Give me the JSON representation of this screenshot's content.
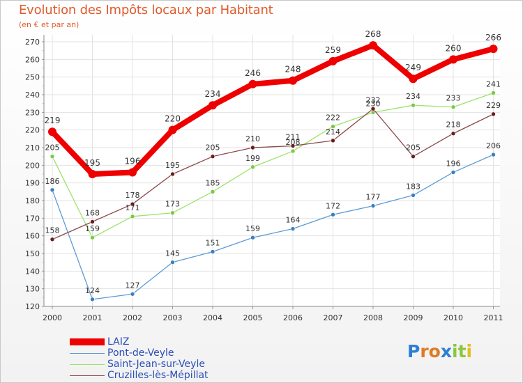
{
  "title": "Evolution des Impôts locaux par Habitant",
  "subtitle": "(en € et par an)",
  "brand": {
    "name": "Proxiti",
    "letters": [
      "P",
      "r",
      "o",
      "x",
      "i",
      "t",
      "i"
    ],
    "colors": [
      "#2a7fd4",
      "#e07a22",
      "#e07a22",
      "#2a7fd4",
      "#8cc63f",
      "#8cc63f",
      "#e0c020"
    ]
  },
  "chart_data": {
    "type": "line",
    "title": "Evolution des Impôts locaux par Habitant",
    "subtitle": "(en € et par an)",
    "xlabel": "",
    "ylabel": "",
    "ylim": [
      120,
      270
    ],
    "yticks": [
      120,
      130,
      140,
      150,
      160,
      170,
      180,
      190,
      200,
      210,
      220,
      230,
      240,
      250,
      260,
      270
    ],
    "grid": true,
    "legend_position": "bottom-left",
    "categories": [
      "2000",
      "2001",
      "2002",
      "2003",
      "2004",
      "2005",
      "2006",
      "2007",
      "2008",
      "2009",
      "2010",
      "2011"
    ],
    "series": [
      {
        "name": "LAIZ",
        "color": "#ee0000",
        "values": [
          219,
          195,
          196,
          220,
          234,
          246,
          248,
          259,
          268,
          249,
          260,
          266
        ]
      },
      {
        "name": "Pont-de-Veyle",
        "color": "#5b9bd5",
        "marker": "#3a7fc0",
        "values": [
          186,
          124,
          127,
          145,
          151,
          159,
          164,
          172,
          177,
          183,
          196,
          206
        ]
      },
      {
        "name": "Saint-Jean-sur-Veyle",
        "color": "#9be36b",
        "marker": "#7ac943",
        "values": [
          205,
          159,
          171,
          173,
          185,
          199,
          208,
          222,
          230,
          234,
          233,
          241
        ]
      },
      {
        "name": "Cruzilles-lès-Mépillat",
        "color": "#8b4a4a",
        "marker": "#6b1c1c",
        "values": [
          158,
          168,
          178,
          195,
          205,
          210,
          211,
          214,
          232,
          205,
          218,
          229
        ]
      }
    ]
  }
}
